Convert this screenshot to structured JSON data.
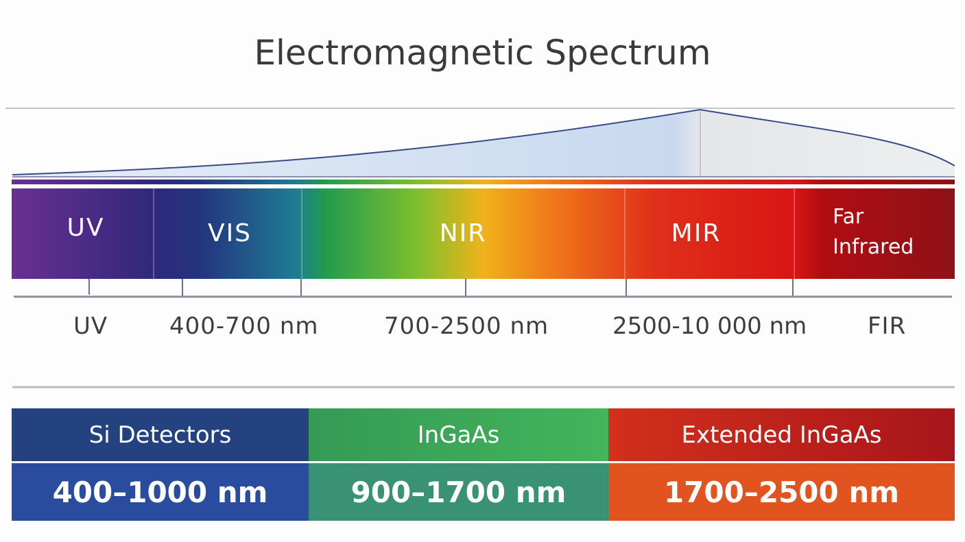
{
  "title": "Electromagnetic Spectrum",
  "bands": [
    {
      "label": "UV"
    },
    {
      "label": "VIS"
    },
    {
      "label": "NIR"
    },
    {
      "label": "MIR"
    },
    {
      "label": "Far",
      "label2": "Infrared"
    }
  ],
  "axis_labels": [
    "UV",
    "400-700 nm",
    "700-2500 nm",
    "2500-10 000 nm",
    "FIR"
  ],
  "detectors": [
    {
      "name": "Si Detectors",
      "range": "400–1000 nm",
      "header_color": "#23427f",
      "range_color": "#2a4c9e"
    },
    {
      "name": "InGaAs",
      "range": "900–1700 nm",
      "header_color": "#3aa55a",
      "range_color": "#3a9274"
    },
    {
      "name": "Extended InGaAs",
      "range": "1700–2500 nm",
      "header_color": "#c8241c",
      "range_color": "#e2541f"
    }
  ]
}
